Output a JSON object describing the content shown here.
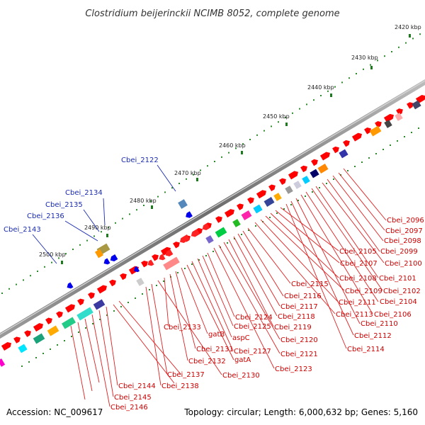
{
  "title": "Clostridium beijerinckii NCIMB 8052, complete genome",
  "footer": {
    "accession": "Accession: NC_009617",
    "topology": "Topology: circular; Length: 6,000,632 bp; Genes: 5,160"
  },
  "kbp_labels": [
    "2420 kbp",
    "2430 kbp",
    "2440 kbp",
    "2450 kbp",
    "2460 kbp",
    "2470 kbp",
    "2480 kbp",
    "2490 kbp",
    "2500 kbp"
  ],
  "blue_labels": [
    "Cbei_2122",
    "Cbei_2134",
    "Cbei_2135",
    "Cbei_2136",
    "Cbei_2143"
  ],
  "right_labels": [
    "Cbei_2096",
    "Cbei_2097",
    "Cbei_2098",
    "Cbei_2099",
    "Cbei_2100",
    "Cbei_2101",
    "Cbei_2102",
    "Cbei_2104",
    "Cbei_2106",
    "Cbei_2110",
    "Cbei_2112",
    "Cbei_2114",
    "Cbei_2105",
    "Cbei_2107",
    "Cbei_2108",
    "Cbei_2109",
    "Cbei_2111",
    "Cbei_2113"
  ],
  "mid_labels": [
    "Cbei_2115",
    "Cbei_2116",
    "Cbei_2117",
    "Cbei_2118",
    "Cbei_2119",
    "Cbei_2120",
    "Cbei_2121",
    "Cbei_2123",
    "Cbei_2124",
    "Cbei_2125",
    "aspC",
    "Cbei_2127",
    "gatA",
    "gatB",
    "Cbei_2131",
    "Cbei_2132",
    "Cbei_2133",
    "Cbei_2130"
  ],
  "left_labels": [
    "Cbei_2137",
    "Cbei_2138",
    "Cbei_2144",
    "Cbei_2145",
    "Cbei_2146"
  ]
}
